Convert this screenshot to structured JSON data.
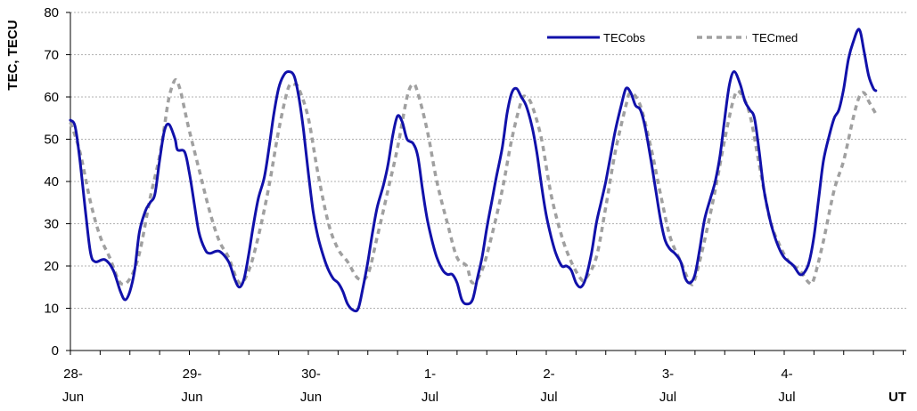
{
  "chart_data": {
    "type": "line",
    "title": "",
    "xlabel": "UT",
    "ylabel": "TEC, TECU",
    "ylim": [
      0,
      80
    ],
    "yticks": [
      "0",
      "10",
      "20",
      "30",
      "40",
      "50",
      "60",
      "70",
      "80"
    ],
    "xlim_days": [
      0,
      7
    ],
    "x_unit": "days from 28-Jun 00 UT",
    "xtick_labels": [
      {
        "day": "28-",
        "month": "Jun"
      },
      {
        "day": "29-",
        "month": "Jun"
      },
      {
        "day": "30-",
        "month": "Jun"
      },
      {
        "day": "1-",
        "month": "Jul"
      },
      {
        "day": "2-",
        "month": "Jul"
      },
      {
        "day": "3-",
        "month": "Jul"
      },
      {
        "day": "4-",
        "month": "Jul"
      }
    ],
    "grid": "horizontal dashed",
    "legend_position": "top-right",
    "series": [
      {
        "name": "TECobs",
        "color": "#1111aa",
        "style": "solid",
        "points": [
          [
            0.0,
            54.5
          ],
          [
            0.04,
            53
          ],
          [
            0.08,
            45
          ],
          [
            0.13,
            32
          ],
          [
            0.17,
            23
          ],
          [
            0.21,
            21
          ],
          [
            0.29,
            21.5
          ],
          [
            0.36,
            19
          ],
          [
            0.42,
            14
          ],
          [
            0.46,
            12
          ],
          [
            0.5,
            14
          ],
          [
            0.54,
            19
          ],
          [
            0.58,
            28
          ],
          [
            0.63,
            33
          ],
          [
            0.67,
            35
          ],
          [
            0.71,
            37
          ],
          [
            0.75,
            45
          ],
          [
            0.79,
            52
          ],
          [
            0.83,
            53.5
          ],
          [
            0.88,
            50
          ],
          [
            0.9,
            47.5
          ],
          [
            0.96,
            47
          ],
          [
            1.0,
            42
          ],
          [
            1.04,
            35
          ],
          [
            1.08,
            28
          ],
          [
            1.13,
            24
          ],
          [
            1.17,
            23
          ],
          [
            1.25,
            23.5
          ],
          [
            1.33,
            21
          ],
          [
            1.38,
            17
          ],
          [
            1.42,
            15
          ],
          [
            1.46,
            17
          ],
          [
            1.5,
            23
          ],
          [
            1.54,
            30
          ],
          [
            1.58,
            36
          ],
          [
            1.63,
            41
          ],
          [
            1.67,
            48
          ],
          [
            1.71,
            56
          ],
          [
            1.75,
            62
          ],
          [
            1.79,
            65
          ],
          [
            1.83,
            66
          ],
          [
            1.88,
            65
          ],
          [
            1.92,
            60
          ],
          [
            1.96,
            52
          ],
          [
            2.0,
            42
          ],
          [
            2.04,
            33
          ],
          [
            2.08,
            27
          ],
          [
            2.13,
            22
          ],
          [
            2.17,
            19
          ],
          [
            2.21,
            17
          ],
          [
            2.25,
            16
          ],
          [
            2.29,
            14
          ],
          [
            2.33,
            11
          ],
          [
            2.38,
            9.5
          ],
          [
            2.42,
            10
          ],
          [
            2.46,
            15
          ],
          [
            2.5,
            21
          ],
          [
            2.54,
            28
          ],
          [
            2.58,
            34
          ],
          [
            2.63,
            39
          ],
          [
            2.67,
            44
          ],
          [
            2.71,
            51
          ],
          [
            2.75,
            55.5
          ],
          [
            2.79,
            54
          ],
          [
            2.83,
            50
          ],
          [
            2.88,
            49
          ],
          [
            2.92,
            46
          ],
          [
            2.96,
            38
          ],
          [
            3.0,
            31
          ],
          [
            3.04,
            26
          ],
          [
            3.08,
            22
          ],
          [
            3.13,
            19
          ],
          [
            3.17,
            18
          ],
          [
            3.21,
            18
          ],
          [
            3.25,
            16
          ],
          [
            3.29,
            12
          ],
          [
            3.33,
            11
          ],
          [
            3.38,
            12
          ],
          [
            3.42,
            17
          ],
          [
            3.46,
            22
          ],
          [
            3.5,
            29
          ],
          [
            3.54,
            35
          ],
          [
            3.58,
            41
          ],
          [
            3.63,
            48
          ],
          [
            3.67,
            56
          ],
          [
            3.71,
            61
          ],
          [
            3.75,
            62
          ],
          [
            3.79,
            60
          ],
          [
            3.83,
            58
          ],
          [
            3.88,
            53
          ],
          [
            3.92,
            47
          ],
          [
            3.96,
            39
          ],
          [
            4.0,
            32
          ],
          [
            4.04,
            27
          ],
          [
            4.08,
            23
          ],
          [
            4.13,
            20
          ],
          [
            4.17,
            20
          ],
          [
            4.21,
            19
          ],
          [
            4.25,
            16
          ],
          [
            4.29,
            15
          ],
          [
            4.33,
            17
          ],
          [
            4.38,
            23
          ],
          [
            4.42,
            30
          ],
          [
            4.46,
            35
          ],
          [
            4.5,
            40
          ],
          [
            4.54,
            46
          ],
          [
            4.58,
            52
          ],
          [
            4.63,
            58
          ],
          [
            4.67,
            62
          ],
          [
            4.71,
            61
          ],
          [
            4.75,
            58
          ],
          [
            4.79,
            57
          ],
          [
            4.83,
            53
          ],
          [
            4.88,
            45
          ],
          [
            4.92,
            38
          ],
          [
            4.96,
            31
          ],
          [
            5.0,
            26
          ],
          [
            5.04,
            24
          ],
          [
            5.08,
            23
          ],
          [
            5.13,
            21
          ],
          [
            5.17,
            17
          ],
          [
            5.21,
            16
          ],
          [
            5.25,
            18
          ],
          [
            5.29,
            24
          ],
          [
            5.33,
            31
          ],
          [
            5.38,
            36
          ],
          [
            5.42,
            40
          ],
          [
            5.46,
            46
          ],
          [
            5.5,
            55
          ],
          [
            5.54,
            63
          ],
          [
            5.58,
            66
          ],
          [
            5.63,
            63
          ],
          [
            5.67,
            59
          ],
          [
            5.71,
            57
          ],
          [
            5.75,
            55
          ],
          [
            5.79,
            47
          ],
          [
            5.83,
            38
          ],
          [
            5.88,
            31
          ],
          [
            5.92,
            27
          ],
          [
            5.96,
            24
          ],
          [
            6.0,
            22
          ],
          [
            6.04,
            21
          ],
          [
            6.08,
            20
          ],
          [
            6.13,
            18
          ],
          [
            6.17,
            18.5
          ],
          [
            6.21,
            21
          ],
          [
            6.25,
            27
          ],
          [
            6.29,
            36
          ],
          [
            6.33,
            45
          ],
          [
            6.38,
            51
          ],
          [
            6.42,
            55
          ],
          [
            6.46,
            57
          ],
          [
            6.5,
            62
          ],
          [
            6.54,
            69
          ],
          [
            6.58,
            73
          ],
          [
            6.63,
            76
          ],
          [
            6.67,
            71
          ],
          [
            6.71,
            65
          ],
          [
            6.75,
            62
          ],
          [
            6.77,
            61.5
          ]
        ]
      },
      {
        "name": "TECmed",
        "color": "#a0a0a0",
        "style": "dashed",
        "points": [
          [
            0.0,
            54
          ],
          [
            0.08,
            47
          ],
          [
            0.17,
            35
          ],
          [
            0.25,
            27
          ],
          [
            0.33,
            22
          ],
          [
            0.42,
            16
          ],
          [
            0.5,
            17
          ],
          [
            0.58,
            23
          ],
          [
            0.67,
            36
          ],
          [
            0.75,
            46
          ],
          [
            0.79,
            53
          ],
          [
            0.83,
            60
          ],
          [
            0.88,
            64
          ],
          [
            0.92,
            62
          ],
          [
            0.96,
            57
          ],
          [
            1.0,
            52
          ],
          [
            1.08,
            43
          ],
          [
            1.17,
            33
          ],
          [
            1.25,
            26
          ],
          [
            1.33,
            22
          ],
          [
            1.42,
            16
          ],
          [
            1.5,
            19
          ],
          [
            1.58,
            27
          ],
          [
            1.67,
            39
          ],
          [
            1.75,
            52
          ],
          [
            1.83,
            62
          ],
          [
            1.88,
            63
          ],
          [
            1.92,
            62
          ],
          [
            2.0,
            55
          ],
          [
            2.08,
            42
          ],
          [
            2.17,
            30
          ],
          [
            2.25,
            24
          ],
          [
            2.33,
            21
          ],
          [
            2.42,
            17
          ],
          [
            2.5,
            18
          ],
          [
            2.58,
            27
          ],
          [
            2.67,
            38
          ],
          [
            2.75,
            48
          ],
          [
            2.83,
            60
          ],
          [
            2.88,
            63
          ],
          [
            2.92,
            61
          ],
          [
            3.0,
            52
          ],
          [
            3.08,
            40
          ],
          [
            3.17,
            30
          ],
          [
            3.25,
            22
          ],
          [
            3.33,
            20
          ],
          [
            3.38,
            16
          ],
          [
            3.46,
            19
          ],
          [
            3.54,
            27
          ],
          [
            3.63,
            38
          ],
          [
            3.71,
            50
          ],
          [
            3.79,
            59
          ],
          [
            3.83,
            60
          ],
          [
            3.88,
            58
          ],
          [
            3.96,
            50
          ],
          [
            4.04,
            37
          ],
          [
            4.13,
            27
          ],
          [
            4.21,
            21
          ],
          [
            4.29,
            17
          ],
          [
            4.33,
            17
          ],
          [
            4.42,
            22
          ],
          [
            4.5,
            34
          ],
          [
            4.58,
            47
          ],
          [
            4.67,
            58
          ],
          [
            4.71,
            61
          ],
          [
            4.79,
            58
          ],
          [
            4.88,
            48
          ],
          [
            4.96,
            37
          ],
          [
            5.04,
            27
          ],
          [
            5.13,
            21
          ],
          [
            5.21,
            16
          ],
          [
            5.25,
            17
          ],
          [
            5.33,
            26
          ],
          [
            5.42,
            38
          ],
          [
            5.5,
            50
          ],
          [
            5.58,
            60
          ],
          [
            5.63,
            61
          ],
          [
            5.71,
            56
          ],
          [
            5.79,
            44
          ],
          [
            5.88,
            31
          ],
          [
            5.96,
            25
          ],
          [
            6.04,
            21
          ],
          [
            6.13,
            19
          ],
          [
            6.21,
            16
          ],
          [
            6.25,
            17
          ],
          [
            6.33,
            26
          ],
          [
            6.42,
            38
          ],
          [
            6.5,
            45
          ],
          [
            6.58,
            55
          ],
          [
            6.63,
            60
          ],
          [
            6.67,
            61
          ],
          [
            6.71,
            59
          ],
          [
            6.77,
            56
          ]
        ]
      }
    ]
  }
}
